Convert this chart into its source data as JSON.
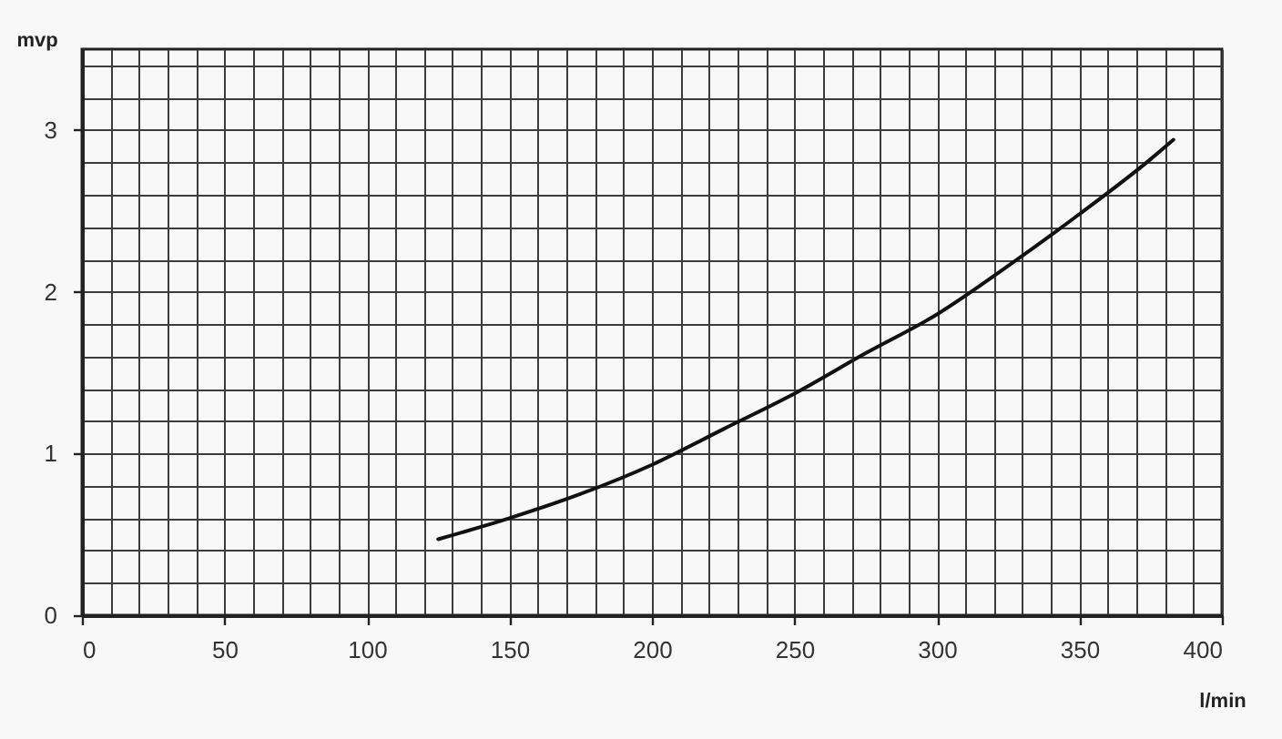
{
  "chart_data": {
    "type": "line",
    "xlabel": "l/min",
    "ylabel": "mvp",
    "x": [
      125,
      150,
      175,
      200,
      225,
      250,
      275,
      300,
      325,
      350,
      375,
      383
    ],
    "series": [
      {
        "color": "#111111",
        "values": [
          0.47,
          0.6,
          0.75,
          0.93,
          1.15,
          1.37,
          1.62,
          1.86,
          2.16,
          2.48,
          2.82,
          2.94
        ]
      }
    ],
    "xlim": [
      0,
      400
    ],
    "xticks": [
      0,
      {
        "value": 10,
        "label": null
      },
      {
        "value": 20,
        "label": null
      },
      {
        "value": 30,
        "label": null
      },
      {
        "value": 40,
        "label": null
      },
      50,
      {
        "value": 60,
        "label": null
      },
      {
        "value": 70,
        "label": null
      },
      {
        "value": 80,
        "label": null
      },
      {
        "value": 90,
        "label": null
      },
      100,
      {
        "value": 110,
        "label": null
      },
      {
        "value": 120,
        "label": null
      },
      {
        "value": 130,
        "label": null
      },
      {
        "value": 140,
        "label": null
      },
      150,
      {
        "value": 160,
        "label": null
      },
      {
        "value": 170,
        "label": null
      },
      {
        "value": 180,
        "label": null
      },
      {
        "value": 190,
        "label": null
      },
      200,
      {
        "value": 210,
        "label": null
      },
      {
        "value": 220,
        "label": null
      },
      {
        "value": 230,
        "label": null
      },
      {
        "value": 240,
        "label": null
      },
      250,
      {
        "value": 260,
        "label": null
      },
      {
        "value": 270,
        "label": null
      },
      {
        "value": 280,
        "label": null
      },
      {
        "value": 290,
        "label": null
      },
      300,
      {
        "value": 310,
        "label": null
      },
      {
        "value": 320,
        "label": null
      },
      {
        "value": 330,
        "label": null
      },
      {
        "value": 340,
        "label": null
      },
      350,
      {
        "value": 360,
        "label": null
      },
      {
        "value": 370,
        "label": null
      },
      {
        "value": 380,
        "label": null
      },
      {
        "value": 390,
        "label": null
      },
      400
    ],
    "ylim": [
      0,
      3.5
    ],
    "yticks": [
      0,
      {
        "value": 0.2,
        "label": null
      },
      {
        "value": 0.4,
        "label": null
      },
      {
        "value": 0.6,
        "label": null
      },
      {
        "value": 0.8,
        "label": null
      },
      1,
      {
        "value": 1.2,
        "label": null
      },
      {
        "value": 1.4,
        "label": null
      },
      {
        "value": 1.6,
        "label": null
      },
      {
        "value": 1.8,
        "label": null
      },
      2,
      {
        "value": 2.2,
        "label": null
      },
      {
        "value": 2.4,
        "label": null
      },
      {
        "value": 2.6,
        "label": null
      },
      {
        "value": 2.8,
        "label": null
      },
      3,
      {
        "value": 3.2,
        "label": null
      },
      {
        "value": 3.4,
        "label": null
      }
    ],
    "grid": true
  }
}
